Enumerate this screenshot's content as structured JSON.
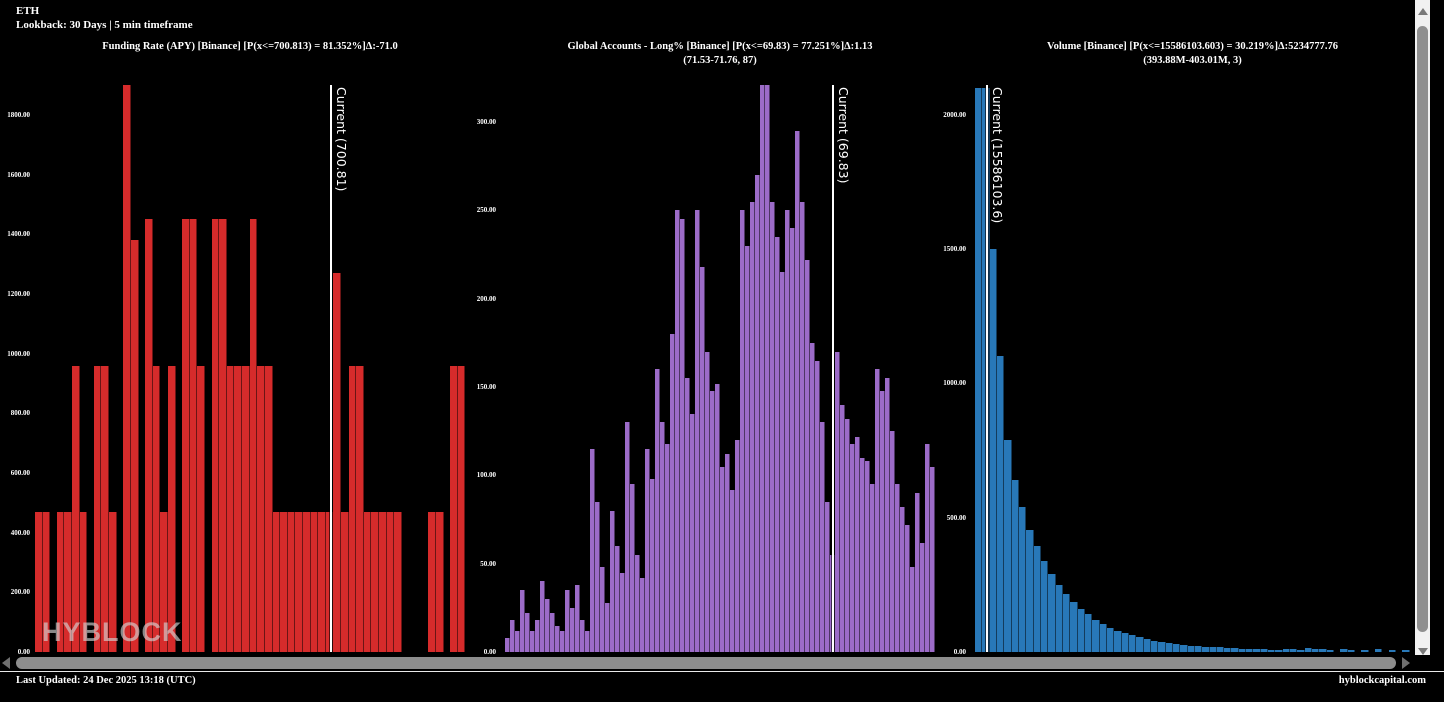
{
  "header": {
    "symbol": "ETH",
    "lookback": "Lookback: 30 Days | 5 min timeframe"
  },
  "watermark": "HYBLOCK",
  "footer": {
    "last_updated": "Last Updated: 24 Dec 2025 13:18 (UTC)",
    "site": "hyblockcapital.com"
  },
  "colors": {
    "background": "#000000",
    "funding_rate_bars": "#d62b2b",
    "long_percent_bars": "#9c6bc8",
    "volume_bars": "#2878b8",
    "current_line": "#ffffff"
  },
  "chart_data": [
    {
      "type": "bar",
      "title": "Funding Rate (APY) [Binance] [P(x<=700.813) = 81.352%]Δ:-71.0",
      "subtitle": "",
      "xlabel": "",
      "ylabel": "",
      "grid": false,
      "legend_position": "none",
      "color": "#d62b2b",
      "ylim": [
        0,
        1900
      ],
      "yticks": [
        0,
        200,
        400,
        600,
        800,
        1000,
        1200,
        1400,
        1600,
        1800
      ],
      "current_label": "Current (700.81)",
      "current_value": 700.81,
      "current_fraction": 0.686,
      "values": [
        470,
        470,
        0,
        470,
        470,
        960,
        470,
        0,
        960,
        960,
        470,
        0,
        1900,
        1380,
        0,
        1450,
        960,
        470,
        960,
        0,
        1450,
        1450,
        960,
        0,
        1450,
        1450,
        960,
        960,
        960,
        1450,
        960,
        960,
        470,
        470,
        470,
        470,
        470,
        470,
        470,
        470,
        1270,
        470,
        960,
        960,
        470,
        470,
        470,
        470,
        470,
        0,
        0,
        0,
        0,
        470,
        470,
        0,
        960,
        960
      ]
    },
    {
      "type": "bar",
      "title": "Global Accounts - Long% [Binance] [P(x<=69.83) = 77.251%]Δ:1.13",
      "subtitle": "(71.53-71.76, 87)",
      "xlabel": "",
      "ylabel": "",
      "grid": false,
      "legend_position": "none",
      "color": "#9c6bc8",
      "ylim": [
        0,
        321
      ],
      "yticks": [
        0,
        50,
        100,
        150,
        200,
        250,
        300
      ],
      "current_label": "Current (69.83)",
      "current_value": 69.83,
      "current_fraction": 0.7605,
      "values": [
        8,
        18,
        12,
        35,
        22,
        12,
        18,
        40,
        30,
        22,
        15,
        12,
        35,
        25,
        38,
        18,
        12,
        115,
        85,
        48,
        28,
        80,
        60,
        45,
        130,
        95,
        55,
        42,
        115,
        98,
        160,
        130,
        118,
        180,
        250,
        245,
        155,
        135,
        250,
        218,
        170,
        148,
        152,
        105,
        112,
        92,
        120,
        250,
        230,
        255,
        270,
        321,
        321,
        255,
        235,
        215,
        250,
        240,
        295,
        255,
        222,
        175,
        165,
        130,
        85,
        55,
        170,
        140,
        132,
        118,
        122,
        110,
        108,
        95,
        160,
        148,
        155,
        125,
        95,
        82,
        72,
        48,
        90,
        62,
        118,
        105
      ]
    },
    {
      "type": "bar",
      "title": "Volume [Binance] [P(x<=15586103.603) = 30.219%]Δ:5234777.76",
      "subtitle": "(393.88M-403.01M, 3)",
      "xlabel": "",
      "ylabel": "",
      "grid": false,
      "legend_position": "none",
      "color": "#2878b8",
      "ylim": [
        0,
        2110
      ],
      "yticks": [
        0,
        500,
        1000,
        1500,
        2000
      ],
      "current_label": "Current (15586103.6)",
      "current_value": 15586103.6,
      "current_fraction": 0.0253,
      "values": [
        2100,
        2100,
        1500,
        1100,
        790,
        640,
        540,
        455,
        395,
        340,
        290,
        250,
        215,
        185,
        160,
        140,
        120,
        105,
        90,
        80,
        70,
        62,
        55,
        48,
        42,
        38,
        34,
        30,
        27,
        24,
        22,
        20,
        18,
        17,
        15,
        14,
        13,
        12,
        11,
        10,
        9,
        8,
        12,
        10,
        8,
        14,
        12,
        10,
        8,
        0,
        10,
        8,
        0,
        8,
        0,
        10,
        0,
        8,
        0,
        8
      ]
    }
  ]
}
